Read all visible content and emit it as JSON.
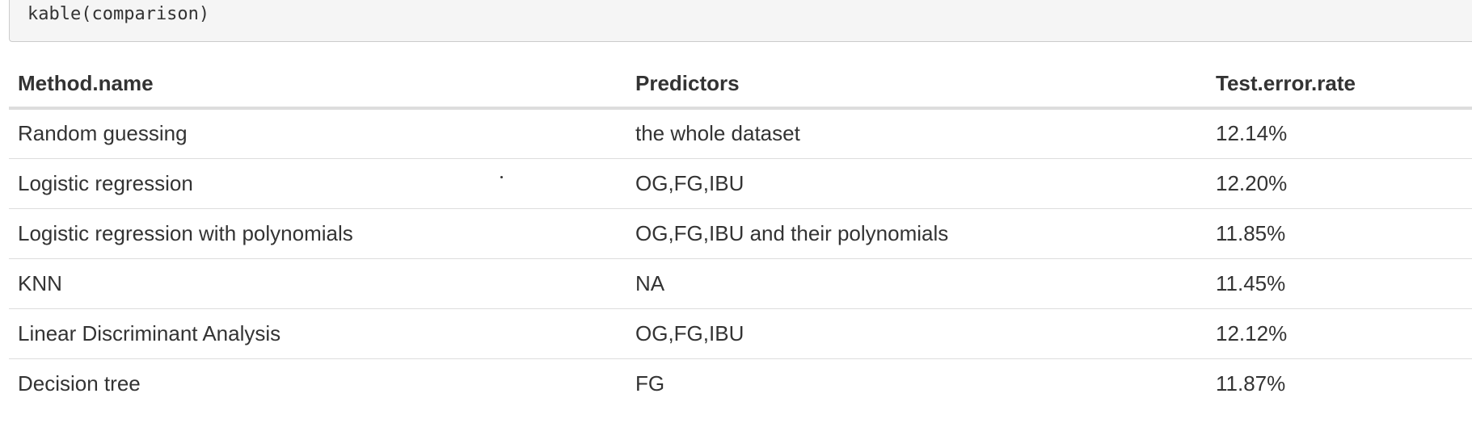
{
  "code": {
    "text": "kable(comparison)"
  },
  "table": {
    "headers": {
      "method": "Method.name",
      "predictors": "Predictors",
      "error": "Test.error.rate"
    },
    "rows": [
      {
        "method": "Random guessing",
        "predictors": "the whole dataset",
        "error": "12.14%"
      },
      {
        "method": "Logistic regression",
        "predictors": "OG,FG,IBU",
        "error": "12.20%"
      },
      {
        "method": "Logistic regression with polynomials",
        "predictors": "OG,FG,IBU and their polynomials",
        "error": "11.85%"
      },
      {
        "method": "KNN",
        "predictors": "NA",
        "error": "11.45%"
      },
      {
        "method": "Linear Discriminant Analysis",
        "predictors": "OG,FG,IBU",
        "error": "12.12%"
      },
      {
        "method": "Decision tree",
        "predictors": "FG",
        "error": "11.87%"
      }
    ]
  }
}
